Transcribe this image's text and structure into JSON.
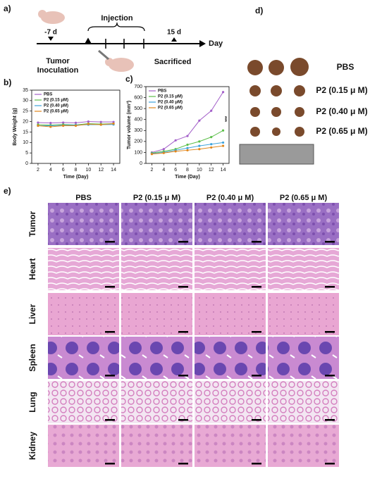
{
  "panels": {
    "a": "a)",
    "b": "b)",
    "c": "c)",
    "d": "d)",
    "e": "e)"
  },
  "timeline": {
    "injection": "Injection",
    "start": "-7 d",
    "end": "15 d",
    "axis": "Day",
    "inoculation": [
      "Tumor",
      "Inoculation"
    ],
    "sacrificed": "Sacrificed"
  },
  "tumor_photo": {
    "labels": [
      "PBS",
      "P2 (0.15 μ M)",
      "P2 (0.40 μ M)",
      "P2 (0.65 μ M)"
    ]
  },
  "histology": {
    "columns": [
      "PBS",
      "P2 (0.15 μ M)",
      "P2 (0.40 μ M)",
      "P2 (0.65 μ M)"
    ],
    "rows": [
      "Tumor",
      "Heart",
      "Liver",
      "Spleen",
      "Lung",
      "Kidney"
    ]
  },
  "chart_data": [
    {
      "type": "line",
      "x_label": "Time (Day)",
      "y_label": "Body Weight (g)",
      "x": [
        2,
        4,
        6,
        8,
        10,
        12,
        14
      ],
      "xlim": [
        1,
        15
      ],
      "xticks": [
        2,
        4,
        6,
        8,
        10,
        12,
        14
      ],
      "ylim": [
        0,
        35
      ],
      "yticks": [
        0,
        5,
        10,
        15,
        20,
        25,
        30,
        35
      ],
      "legend": "upper left",
      "series": [
        {
          "name": "PBS",
          "color": "#a35fc9",
          "values": [
            19.5,
            19.3,
            19.5,
            19.4,
            20,
            19.8,
            19.8
          ]
        },
        {
          "name": "P2 (0.15 μM)",
          "color": "#5cbf4a",
          "values": [
            18.5,
            18.3,
            18.6,
            18.4,
            19,
            18.8,
            19
          ]
        },
        {
          "name": "P2 (0.40 μM)",
          "color": "#3ea3dc",
          "values": [
            18,
            18,
            18.2,
            18.3,
            18.5,
            18.5,
            18.6
          ]
        },
        {
          "name": "P2 (0.65 μM)",
          "color": "#e0861c",
          "values": [
            18,
            17.5,
            18,
            18,
            18.8,
            18.5,
            19
          ]
        }
      ]
    },
    {
      "type": "line",
      "x_label": "Time (Day)",
      "y_label": "Tumor volume (mm³)",
      "annotation": "***",
      "x": [
        2,
        4,
        6,
        8,
        10,
        12,
        14
      ],
      "xlim": [
        1,
        15
      ],
      "xticks": [
        2,
        4,
        6,
        8,
        10,
        12,
        14
      ],
      "ylim": [
        0,
        700
      ],
      "yticks": [
        0,
        100,
        200,
        300,
        400,
        500,
        600,
        700
      ],
      "legend": "upper left",
      "series": [
        {
          "name": "PBS",
          "color": "#a35fc9",
          "values": [
            100,
            130,
            210,
            250,
            390,
            480,
            650
          ]
        },
        {
          "name": "P2 (0.15 μM)",
          "color": "#5cbf4a",
          "values": [
            95,
            110,
            130,
            170,
            200,
            240,
            300
          ]
        },
        {
          "name": "P2 (0.40 μM)",
          "color": "#3ea3dc",
          "values": [
            90,
            100,
            120,
            140,
            160,
            175,
            190
          ]
        },
        {
          "name": "P2 (0.65 μM)",
          "color": "#e0861c",
          "values": [
            85,
            95,
            110,
            120,
            130,
            145,
            160
          ]
        }
      ]
    }
  ]
}
